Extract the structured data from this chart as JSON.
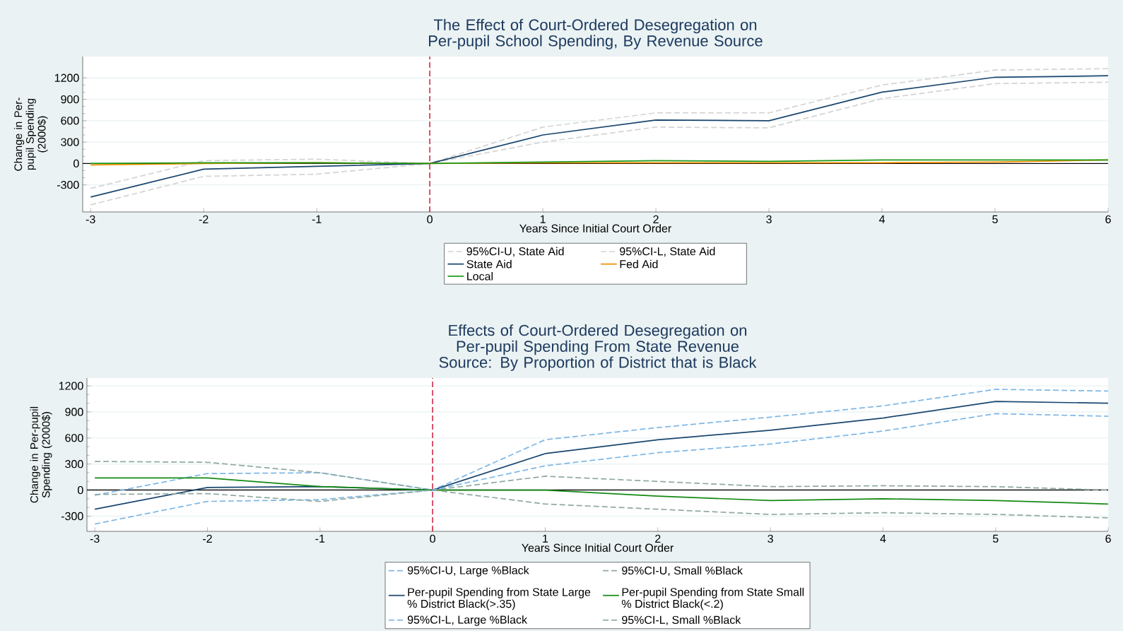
{
  "chart_data": [
    {
      "type": "line",
      "title": "The Effect of Court-Ordered Desegregation on Per-pupil School Spending, By Revenue Source",
      "xlabel": "Years Since Initial Court Order",
      "ylabel": "Change in Per-pupil Spending (2000$)",
      "x": [
        -3,
        -2,
        -1,
        0,
        1,
        2,
        3,
        4,
        5,
        6
      ],
      "series": [
        {
          "name": "95%CI-U, State Aid",
          "color": "#d4d4d4",
          "line_style": "dashed",
          "values": [
            -350,
            40,
            60,
            0,
            510,
            710,
            710,
            1100,
            1310,
            1330
          ]
        },
        {
          "name": "95%CI-L, State Aid",
          "color": "#d4d4d4",
          "line_style": "dashed",
          "values": [
            -580,
            -180,
            -150,
            0,
            300,
            510,
            500,
            910,
            1120,
            1140
          ]
        },
        {
          "name": "State Aid",
          "color": "#1a476f",
          "line_style": "solid",
          "values": [
            -470,
            -80,
            -40,
            0,
            400,
            610,
            600,
            1000,
            1210,
            1230
          ]
        },
        {
          "name": "Fed Aid",
          "color": "#f28e00",
          "line_style": "solid",
          "values": [
            -20,
            0,
            10,
            0,
            10,
            10,
            10,
            10,
            20,
            50
          ]
        },
        {
          "name": "Local",
          "color": "#1a9a1a",
          "line_style": "solid",
          "values": [
            0,
            10,
            10,
            0,
            20,
            40,
            30,
            50,
            50,
            50
          ]
        }
      ],
      "xlim": [
        -3.07,
        6
      ],
      "ylim": [
        -680,
        1500
      ],
      "xticks": [
        -3,
        -2,
        -1,
        0,
        1,
        2,
        3,
        4,
        5,
        6
      ],
      "yticks": [
        -300,
        0,
        300,
        600,
        900,
        1200
      ],
      "grid": "y",
      "legend": "bottom",
      "ref_lines": [
        {
          "axis": "y",
          "value": 0,
          "color": "#000000",
          "line_style": "solid"
        },
        {
          "axis": "x",
          "value": 0,
          "color": "#c8102e",
          "line_style": "dashed"
        }
      ]
    },
    {
      "type": "line",
      "title": "Effects of Court-Ordered Desegregation on Per-pupil Spending From State Revenue Source: By Proportion of District that is Black",
      "xlabel": "Years Since Initial Court Order",
      "ylabel": "Change in Per-pupil Spending (2000$)",
      "x": [
        -3,
        -2,
        -1,
        0,
        1,
        2,
        3,
        4,
        5,
        6
      ],
      "series": [
        {
          "name": "95%CI-U, Large %Black",
          "color": "#7fb8e6",
          "line_style": "dashed",
          "values": [
            -60,
            190,
            200,
            0,
            580,
            720,
            840,
            970,
            1160,
            1140
          ]
        },
        {
          "name": "95%CI-U, Small %Black",
          "color": "#90aaa2",
          "line_style": "dashed",
          "values": [
            330,
            320,
            200,
            0,
            160,
            100,
            40,
            50,
            40,
            0
          ]
        },
        {
          "name": "Per-pupil Spending from State Large % District Black(>.35)",
          "color": "#1a476f",
          "line_style": "solid",
          "values": [
            -220,
            30,
            40,
            0,
            420,
            580,
            690,
            830,
            1020,
            1000
          ]
        },
        {
          "name": "Per-pupil Spending from State Small % District Black(<.2)",
          "color": "#138a13",
          "line_style": "solid",
          "values": [
            140,
            140,
            40,
            0,
            0,
            -70,
            -120,
            -100,
            -120,
            -160
          ]
        },
        {
          "name": "95%CI-L, Large %Black",
          "color": "#7fb8e6",
          "line_style": "dashed",
          "values": [
            -390,
            -130,
            -110,
            0,
            280,
            430,
            530,
            680,
            880,
            850
          ]
        },
        {
          "name": "95%CI-L, Small %Black",
          "color": "#90aaa2",
          "line_style": "dashed",
          "values": [
            -50,
            -40,
            -130,
            0,
            -160,
            -220,
            -280,
            -260,
            -280,
            -320
          ]
        }
      ],
      "xlim": [
        -3.07,
        6
      ],
      "ylim": [
        -475,
        1290
      ],
      "xticks": [
        -3,
        -2,
        -1,
        0,
        1,
        2,
        3,
        4,
        5,
        6
      ],
      "yticks": [
        -300,
        0,
        300,
        600,
        900,
        1200
      ],
      "grid": "y",
      "legend": "bottom",
      "ref_lines": [
        {
          "axis": "y",
          "value": 0,
          "color": "#000000",
          "line_style": "solid"
        },
        {
          "axis": "x",
          "value": 0,
          "color": "#c8102e",
          "line_style": "dashed"
        }
      ]
    }
  ]
}
